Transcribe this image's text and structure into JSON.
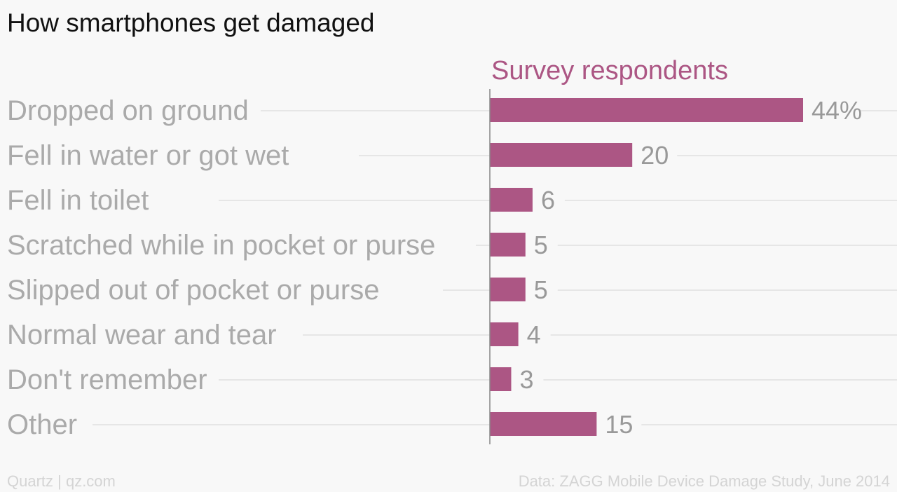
{
  "title": "How smartphones get damaged",
  "footer": {
    "brand": "Quartz | qz.com",
    "source": "Data: ZAGG Mobile Device Damage Study, June 2014"
  },
  "colors": {
    "bar": "#ac5684",
    "series_label": "#ac5684",
    "category_label": "#aaaaaa",
    "value_label": "#999999",
    "gridline": "#e6e6e6",
    "axis": "#888888"
  },
  "chart_data": {
    "type": "bar",
    "orientation": "horizontal",
    "title": "How smartphones get damaged",
    "series": [
      {
        "name": "Survey respondents",
        "values": [
          44,
          20,
          6,
          5,
          5,
          4,
          3,
          15
        ]
      }
    ],
    "categories": [
      "Dropped on ground",
      "Fell in water or got wet",
      "Fell in toilet",
      "Scratched while in pocket or purse",
      "Slipped out of pocket or purse",
      "Normal wear and tear",
      "Don't remember",
      "Other"
    ],
    "value_labels": [
      "44%",
      "20",
      "6",
      "5",
      "5",
      "4",
      "3",
      "15"
    ],
    "xlim": [
      0,
      44
    ],
    "grid": false,
    "legend": "none"
  }
}
